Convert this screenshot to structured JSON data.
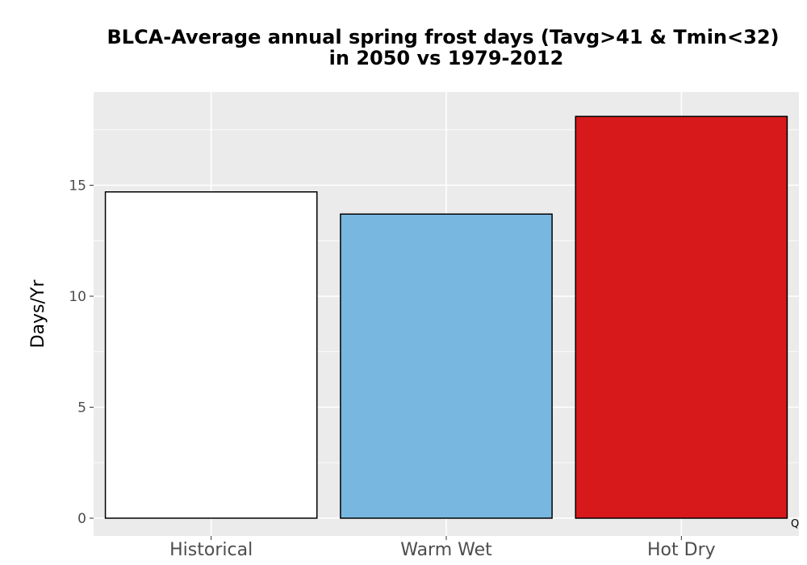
{
  "chart_data": {
    "type": "bar",
    "title_line1": "BLCA-Average annual spring frost days (Tavg>41 & Tmin<32)",
    "title_line2": "in 2050 vs 1979-2012",
    "xlabel": "",
    "ylabel": "Days/Yr",
    "categories": [
      "Historical",
      "Warm Wet",
      "Hot Dry"
    ],
    "values": [
      14.7,
      13.7,
      18.1
    ],
    "colors": [
      "#ffffff",
      "#78b7e0",
      "#d7191c"
    ],
    "ylim": [
      -0.8,
      19.2
    ],
    "yticks": [
      0,
      5,
      10,
      15
    ],
    "ytick_labels": [
      "0",
      "5",
      "10",
      "15"
    ],
    "grid": true,
    "legend": "none",
    "panel_background": "#ebebeb",
    "corner_mark": "Q"
  }
}
